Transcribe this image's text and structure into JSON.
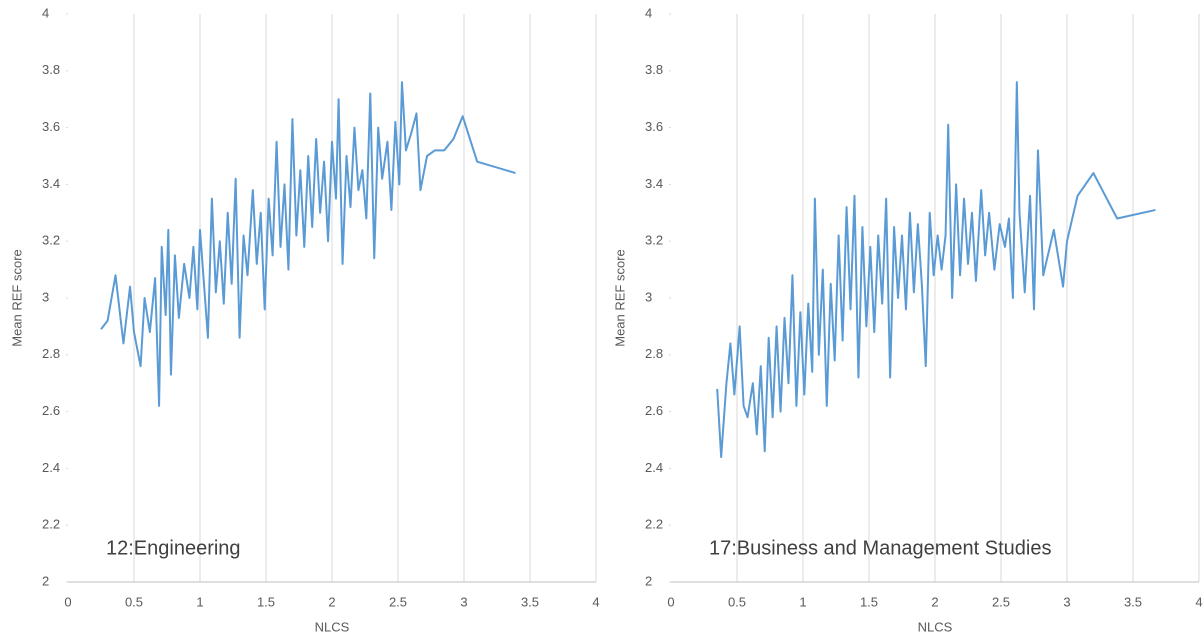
{
  "chart_data": [
    {
      "type": "line",
      "annotation": "12:Engineering",
      "x_label": "NLCS",
      "y_label": "Mean REF score",
      "color": "#5b9bd5",
      "xlim": [
        0,
        4
      ],
      "xticks": [
        0,
        0.5,
        1,
        1.5,
        2,
        2.5,
        3,
        3.5,
        4
      ],
      "ylim": [
        2,
        4
      ],
      "yticks": [
        2,
        2.2,
        2.4,
        2.6,
        2.8,
        3,
        3.2,
        3.4,
        3.6,
        3.8,
        4
      ],
      "grid": true,
      "x": [
        0.25,
        0.3,
        0.36,
        0.42,
        0.47,
        0.5,
        0.55,
        0.58,
        0.62,
        0.66,
        0.69,
        0.71,
        0.74,
        0.76,
        0.78,
        0.81,
        0.84,
        0.88,
        0.92,
        0.95,
        0.98,
        1.0,
        1.03,
        1.06,
        1.09,
        1.12,
        1.15,
        1.18,
        1.21,
        1.24,
        1.27,
        1.3,
        1.33,
        1.36,
        1.4,
        1.43,
        1.46,
        1.49,
        1.52,
        1.55,
        1.58,
        1.61,
        1.64,
        1.67,
        1.7,
        1.73,
        1.76,
        1.79,
        1.82,
        1.85,
        1.88,
        1.91,
        1.94,
        1.97,
        2.0,
        2.03,
        2.05,
        2.08,
        2.11,
        2.14,
        2.17,
        2.2,
        2.23,
        2.26,
        2.29,
        2.32,
        2.35,
        2.38,
        2.42,
        2.45,
        2.48,
        2.51,
        2.53,
        2.56,
        2.6,
        2.64,
        2.67,
        2.72,
        2.78,
        2.85,
        2.92,
        2.99,
        3.1,
        3.39
      ],
      "values": [
        2.89,
        2.92,
        3.08,
        2.84,
        3.04,
        2.88,
        2.76,
        3.0,
        2.88,
        3.07,
        2.62,
        3.18,
        2.94,
        3.24,
        2.73,
        3.15,
        2.93,
        3.12,
        3.0,
        3.18,
        2.96,
        3.24,
        3.05,
        2.86,
        3.35,
        3.02,
        3.2,
        2.98,
        3.3,
        3.05,
        3.42,
        2.86,
        3.22,
        3.08,
        3.38,
        3.12,
        3.3,
        2.96,
        3.35,
        3.15,
        3.55,
        3.18,
        3.4,
        3.1,
        3.63,
        3.22,
        3.45,
        3.18,
        3.5,
        3.25,
        3.56,
        3.3,
        3.48,
        3.2,
        3.55,
        3.35,
        3.7,
        3.12,
        3.5,
        3.32,
        3.6,
        3.38,
        3.45,
        3.28,
        3.72,
        3.14,
        3.6,
        3.42,
        3.55,
        3.31,
        3.62,
        3.4,
        3.76,
        3.52,
        3.58,
        3.65,
        3.38,
        3.5,
        3.52,
        3.52,
        3.56,
        3.64,
        3.48,
        3.44
      ]
    },
    {
      "type": "line",
      "annotation": "17:Business and Management Studies",
      "x_label": "NLCS",
      "y_label": "Mean REF score",
      "color": "#5b9bd5",
      "xlim": [
        0,
        4
      ],
      "xticks": [
        0,
        0.5,
        1,
        1.5,
        2,
        2.5,
        3,
        3.5,
        4
      ],
      "ylim": [
        2,
        4
      ],
      "yticks": [
        2,
        2.2,
        2.4,
        2.6,
        2.8,
        3,
        3.2,
        3.4,
        3.6,
        3.8,
        4
      ],
      "grid": true,
      "x": [
        0.35,
        0.38,
        0.42,
        0.45,
        0.48,
        0.52,
        0.55,
        0.58,
        0.62,
        0.65,
        0.68,
        0.71,
        0.74,
        0.77,
        0.8,
        0.83,
        0.86,
        0.89,
        0.92,
        0.95,
        0.98,
        1.01,
        1.04,
        1.07,
        1.09,
        1.12,
        1.15,
        1.18,
        1.21,
        1.24,
        1.27,
        1.3,
        1.33,
        1.36,
        1.39,
        1.42,
        1.45,
        1.48,
        1.51,
        1.54,
        1.57,
        1.6,
        1.63,
        1.66,
        1.69,
        1.72,
        1.75,
        1.78,
        1.81,
        1.84,
        1.87,
        1.9,
        1.93,
        1.96,
        1.99,
        2.02,
        2.05,
        2.08,
        2.1,
        2.13,
        2.16,
        2.19,
        2.22,
        2.25,
        2.28,
        2.31,
        2.35,
        2.38,
        2.41,
        2.45,
        2.49,
        2.53,
        2.56,
        2.59,
        2.62,
        2.64,
        2.68,
        2.72,
        2.75,
        2.78,
        2.82,
        2.9,
        2.97,
        3.0,
        3.08,
        3.2,
        3.38,
        3.67
      ],
      "values": [
        2.68,
        2.44,
        2.7,
        2.84,
        2.66,
        2.9,
        2.62,
        2.58,
        2.7,
        2.52,
        2.76,
        2.46,
        2.86,
        2.58,
        2.9,
        2.6,
        2.93,
        2.7,
        3.08,
        2.62,
        2.95,
        2.66,
        2.98,
        2.74,
        3.35,
        2.8,
        3.1,
        2.62,
        3.05,
        2.78,
        3.22,
        2.85,
        3.32,
        2.96,
        3.36,
        2.72,
        3.25,
        2.9,
        3.18,
        2.88,
        3.22,
        2.98,
        3.35,
        2.72,
        3.25,
        3.0,
        3.22,
        2.96,
        3.3,
        3.02,
        3.26,
        3.05,
        2.76,
        3.3,
        3.08,
        3.22,
        3.1,
        3.22,
        3.61,
        3.0,
        3.4,
        3.08,
        3.35,
        3.12,
        3.3,
        3.06,
        3.38,
        3.15,
        3.3,
        3.1,
        3.26,
        3.18,
        3.28,
        3.0,
        3.76,
        3.3,
        3.02,
        3.36,
        2.96,
        3.52,
        3.08,
        3.24,
        3.04,
        3.2,
        3.36,
        3.44,
        3.28,
        3.31
      ]
    }
  ]
}
